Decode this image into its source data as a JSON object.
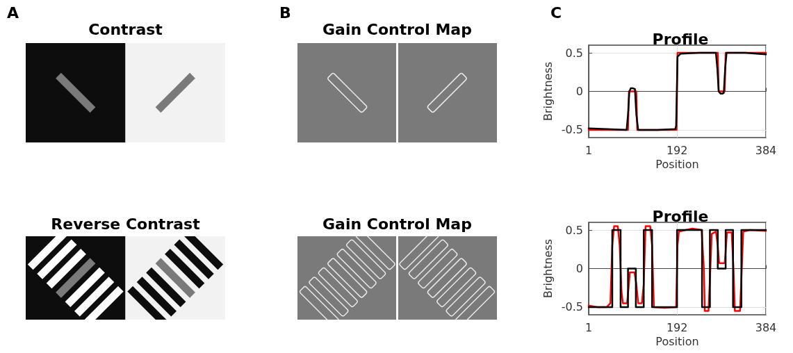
{
  "chart_data": [
    {
      "type": "other",
      "title": "Contrast",
      "annotations": [
        "A"
      ]
    },
    {
      "type": "other",
      "title": "Gain Control Map",
      "annotations": [
        "B"
      ]
    },
    {
      "type": "line",
      "title": "Profile",
      "annotations": [
        "C"
      ],
      "xlabel": "Position",
      "ylabel": "Brightness",
      "xlim": [
        1,
        384
      ],
      "xticks": [
        1,
        192,
        384
      ],
      "ylim": [
        -0.6,
        0.6
      ],
      "yticks": [
        -0.5,
        0,
        0.5
      ],
      "grid": true,
      "series": [
        {
          "color": "#ff0000",
          "x": [
            1,
            86,
            88,
            104,
            106,
            191,
            193,
            280,
            282,
            295,
            297,
            384
          ],
          "values": [
            -0.5,
            -0.5,
            0.0,
            0.0,
            -0.5,
            -0.5,
            0.5,
            0.5,
            0.0,
            0.0,
            0.5,
            0.5
          ]
        },
        {
          "color": "#000000",
          "x": [
            1,
            40,
            83,
            86,
            89,
            92,
            97,
            101,
            104,
            108,
            150,
            188,
            190,
            193,
            200,
            240,
            276,
            279,
            282,
            286,
            290,
            293,
            296,
            299,
            340,
            384
          ],
          "values": [
            -0.48,
            -0.49,
            -0.5,
            -0.3,
            0.0,
            0.04,
            0.04,
            0.03,
            -0.3,
            -0.5,
            -0.5,
            -0.49,
            -0.45,
            0.45,
            0.49,
            0.5,
            0.5,
            0.3,
            0.0,
            -0.03,
            -0.03,
            -0.02,
            0.3,
            0.5,
            0.5,
            0.48
          ]
        }
      ]
    },
    {
      "type": "other",
      "title": "Reverse Contrast"
    },
    {
      "type": "other",
      "title": "Gain Control Map"
    },
    {
      "type": "line",
      "title": "Profile",
      "xlabel": "Position",
      "ylabel": "Brightness",
      "xlim": [
        1,
        384
      ],
      "xticks": [
        1,
        192,
        384
      ],
      "ylim": [
        -0.6,
        0.6
      ],
      "yticks": [
        -0.5,
        0,
        0.5
      ],
      "grid": true,
      "series": [
        {
          "color": "#ff0000",
          "x": [
            1,
            20,
            40,
            48,
            52,
            56,
            64,
            68,
            72,
            75,
            84,
            88,
            90,
            100,
            104,
            108,
            116,
            120,
            124,
            134,
            138,
            142,
            165,
            190,
            193,
            196,
            225,
            245,
            250,
            252,
            260,
            264,
            267,
            276,
            280,
            283,
            295,
            298,
            300,
            310,
            314,
            317,
            328,
            332,
            335,
            350,
            384
          ],
          "values": [
            -0.48,
            -0.5,
            -0.5,
            -0.45,
            0.3,
            0.55,
            0.55,
            0.3,
            -0.3,
            -0.45,
            -0.45,
            -0.2,
            -0.05,
            -0.05,
            -0.2,
            -0.45,
            -0.45,
            -0.2,
            0.55,
            0.55,
            0.3,
            -0.5,
            -0.51,
            -0.5,
            0.3,
            0.48,
            0.52,
            0.5,
            0.0,
            -0.55,
            -0.55,
            0.0,
            0.45,
            0.48,
            0.3,
            0.07,
            0.07,
            0.3,
            0.47,
            0.47,
            0.0,
            -0.55,
            -0.55,
            0.0,
            0.48,
            0.5,
            0.49
          ]
        },
        {
          "color": "#000000",
          "x": [
            1,
            52,
            52,
            70,
            70,
            86,
            86,
            103,
            103,
            120,
            120,
            138,
            138,
            192,
            192,
            246,
            246,
            263,
            263,
            280,
            280,
            297,
            297,
            313,
            313,
            331,
            331,
            384
          ],
          "values": [
            -0.5,
            -0.5,
            0.5,
            0.5,
            -0.5,
            -0.5,
            0,
            0,
            -0.5,
            -0.5,
            0.5,
            0.5,
            -0.5,
            -0.5,
            0.5,
            0.5,
            -0.5,
            -0.5,
            0.5,
            0.5,
            0,
            0,
            0.5,
            0.5,
            -0.5,
            -0.5,
            0.5,
            0.5
          ]
        }
      ]
    }
  ]
}
